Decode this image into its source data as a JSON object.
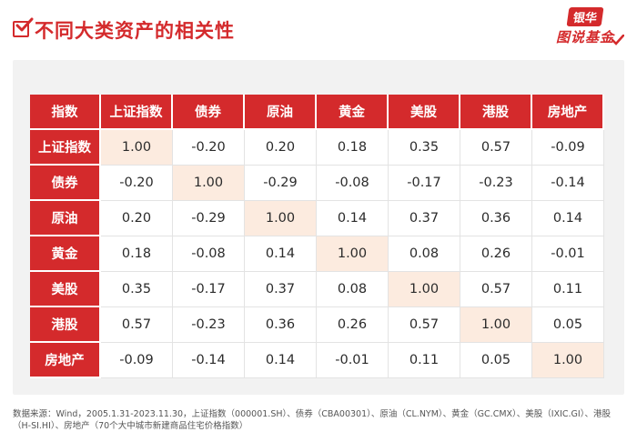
{
  "header": {
    "title": "不同大类资产的相关性",
    "brand_top": "银华",
    "brand_bottom": "图说基金",
    "accent_color": "#d42a2c"
  },
  "table": {
    "corner": "指数",
    "columns": [
      "上证指数",
      "债券",
      "原油",
      "黄金",
      "美股",
      "港股",
      "房地产"
    ],
    "rows": [
      {
        "label": "上证指数",
        "values": [
          "1.00",
          "-0.20",
          "0.20",
          "0.18",
          "0.35",
          "0.57",
          "-0.09"
        ]
      },
      {
        "label": "债券",
        "values": [
          "-0.20",
          "1.00",
          "-0.29",
          "-0.08",
          "-0.17",
          "-0.23",
          "-0.14"
        ]
      },
      {
        "label": "原油",
        "values": [
          "0.20",
          "-0.29",
          "1.00",
          "0.14",
          "0.37",
          "0.36",
          "0.14"
        ]
      },
      {
        "label": "黄金",
        "values": [
          "0.18",
          "-0.08",
          "0.14",
          "1.00",
          "0.08",
          "0.26",
          "-0.01"
        ]
      },
      {
        "label": "美股",
        "values": [
          "0.35",
          "-0.17",
          "0.37",
          "0.08",
          "1.00",
          "0.57",
          "0.11"
        ]
      },
      {
        "label": "港股",
        "values": [
          "0.57",
          "-0.23",
          "0.36",
          "0.26",
          "0.57",
          "1.00",
          "0.05"
        ]
      },
      {
        "label": "房地产",
        "values": [
          "-0.09",
          "-0.14",
          "0.14",
          "-0.01",
          "0.11",
          "0.05",
          "1.00"
        ]
      }
    ]
  },
  "source": "数据来源：Wind，2005.1.31-2023.11.30，上证指数（000001.SH）、债券（CBA00301）、原油（CL.NYM）、黄金（GC.CMX）、美股（IXIC.GI）、港股（H-SI.HI）、房地产（70个大中城市新建商品住宅价格指数）"
}
